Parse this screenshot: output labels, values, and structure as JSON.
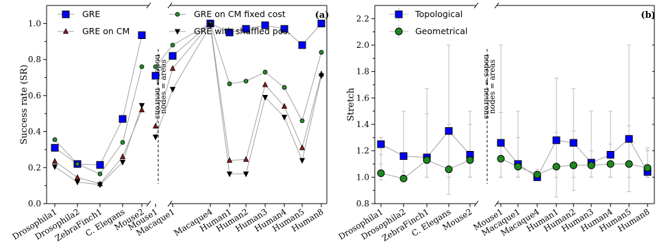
{
  "chart_data": [
    {
      "type": "line",
      "panel_label": "(a)",
      "ylabel": "Success rate (SR)",
      "ylim": [
        0,
        1.1
      ],
      "yticks": [
        "0.0",
        "0.2",
        "0.4",
        "0.6",
        "0.8",
        "1.0"
      ],
      "groups": [
        [
          "Drosophila1",
          "Drosophila2",
          "ZebraFinch1",
          "C. Elegans",
          "Mouse2"
        ],
        [
          "Mouse1",
          "Macaque1",
          "Macaque4",
          "Human1",
          "Human2",
          "Human3",
          "Human4",
          "Human5",
          "Human8"
        ]
      ],
      "separator_labels": [
        "nodes = neurons",
        "nodes = areas"
      ],
      "legend": "top",
      "series": [
        {
          "name": "GRE",
          "marker": "square",
          "color": "#0000ff",
          "groups": [
            [
              0.31,
              0.22,
              0.215,
              0.47,
              0.935
            ],
            [
              0.71,
              0.82,
              1.0,
              0.95,
              0.97,
              0.99,
              0.97,
              0.88,
              1.0
            ]
          ]
        },
        {
          "name": "GRE on CM",
          "marker": "triangle-up",
          "color": "#8b1a1a",
          "groups": [
            [
              0.235,
              0.145,
              0.11,
              0.26,
              0.52
            ],
            [
              0.43,
              0.75,
              1.0,
              0.24,
              0.245,
              0.66,
              0.54,
              0.31,
              0.72
            ]
          ]
        },
        {
          "name": "GRE on CM fixed cost",
          "marker": "circle",
          "color": "#2a8a2a",
          "groups": [
            [
              0.355,
              0.22,
              0.165,
              0.34,
              0.76
            ],
            [
              0.76,
              0.88,
              1.0,
              0.665,
              0.68,
              0.73,
              0.645,
              0.46,
              0.84
            ]
          ]
        },
        {
          "name": "GRE with shuffled pos.",
          "marker": "triangle-down",
          "color": "#000000",
          "groups": [
            [
              0.205,
              0.12,
              0.105,
              0.23,
              0.545
            ],
            [
              0.37,
              0.635,
              0.99,
              0.165,
              0.165,
              0.59,
              0.48,
              0.24,
              0.71
            ]
          ]
        }
      ]
    },
    {
      "type": "line",
      "panel_label": "(b)",
      "ylabel": "Stretch",
      "ylim": [
        0.8,
        2.3
      ],
      "yticks": [
        "0.8",
        "1.0",
        "1.2",
        "1.4",
        "1.6",
        "1.8",
        "2.0",
        "2.2"
      ],
      "groups": [
        [
          "Drosophila1",
          "Drosophila2",
          "ZebraFinch1",
          "C. Elegans",
          "Mouse2"
        ],
        [
          "Mouse1",
          "Macaque1",
          "Macaque4",
          "Human1",
          "Human2",
          "Human3",
          "Human4",
          "Human5",
          "Human8"
        ]
      ],
      "separator_labels": [
        "nodes = neurons",
        "nodes = areas"
      ],
      "legend": "top-left",
      "series": [
        {
          "name": "Topological",
          "marker": "square",
          "color": "#0000ff",
          "groups": [
            [
              1.25,
              1.16,
              1.15,
              1.35,
              1.17
            ],
            [
              1.26,
              1.1,
              1.0,
              1.28,
              1.26,
              1.11,
              1.17,
              1.29,
              1.04
            ]
          ],
          "err_low": [
            [
              1.1,
              1.0,
              1.0,
              1.0,
              1.0
            ],
            [
              1.0,
              1.0,
              1.0,
              1.0,
              1.0,
              1.0,
              1.0,
              1.0,
              1.0
            ]
          ],
          "err_high": [
            [
              1.3,
              1.5,
              1.67,
              2.0,
              1.5
            ],
            [
              2.0,
              1.5,
              1.0,
              1.75,
              1.67,
              1.5,
              1.5,
              2.0,
              1.2
            ]
          ]
        },
        {
          "name": "Geometrical",
          "marker": "circle",
          "color": "#1f8a1f",
          "groups": [
            [
              1.03,
              0.99,
              1.13,
              1.06,
              1.13
            ],
            [
              1.14,
              1.08,
              1.02,
              1.08,
              1.09,
              1.09,
              1.1,
              1.1,
              1.07
            ]
          ],
          "err_low": [
            [
              0.98,
              0.97,
              1.0,
              0.87,
              1.0
            ],
            [
              1.0,
              1.0,
              0.98,
              0.85,
              0.9,
              1.0,
              1.0,
              0.89,
              1.0
            ]
          ],
          "err_high": [
            [
              1.17,
              1.04,
              1.48,
              1.4,
              1.4
            ],
            [
              1.49,
              1.3,
              1.06,
              1.34,
              1.35,
              1.2,
              1.25,
              1.39,
              1.22
            ]
          ]
        }
      ]
    }
  ]
}
